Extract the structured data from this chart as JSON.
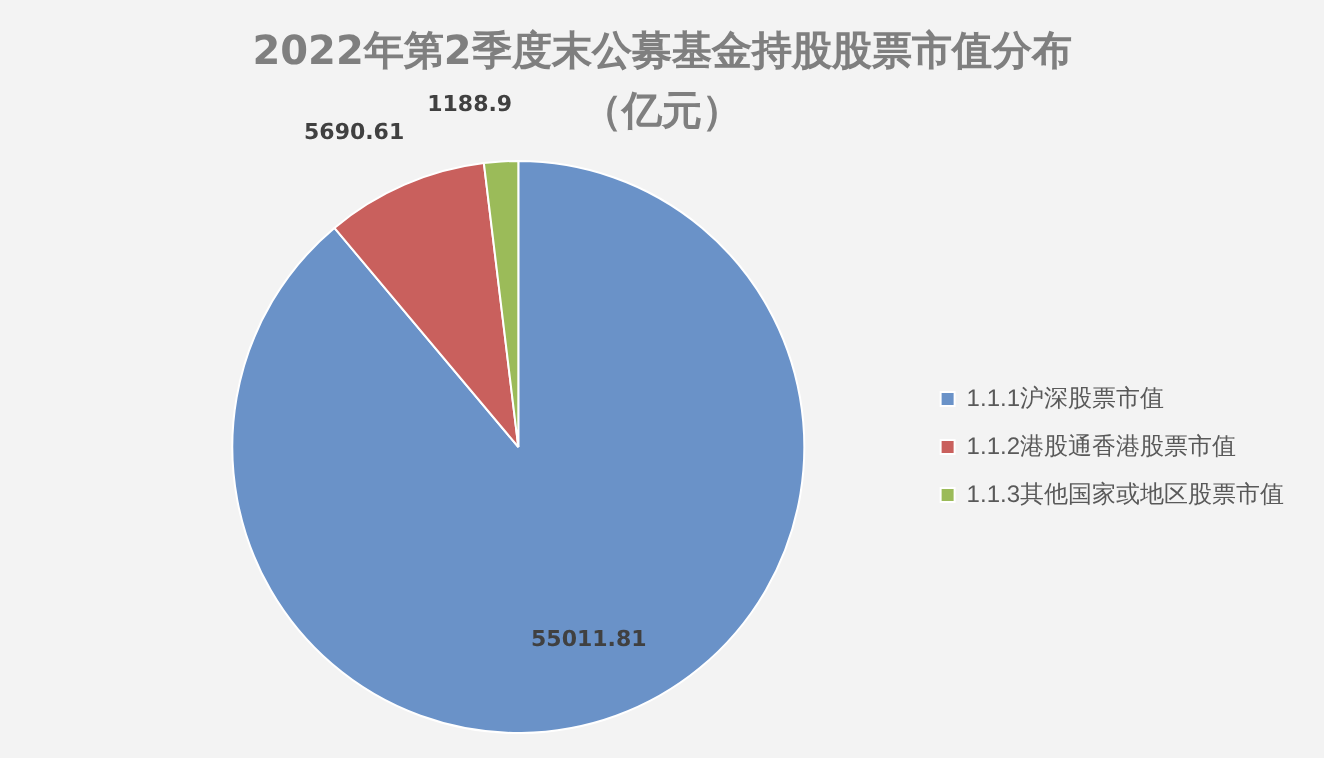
{
  "chart_data": {
    "type": "pie",
    "title": "2022年第2季度末公募基金持股股票市值分布（亿元）",
    "categories": [
      "1.1.1沪深股票市值",
      "1.1.2港股通香港股票市值",
      "1.1.3其他国家或地区股票市值"
    ],
    "values": [
      55011.81,
      5690.61,
      1188.9
    ],
    "colors": [
      "#6a92c8",
      "#c9605d",
      "#9bbb59"
    ],
    "data_labels": true,
    "legend": "right"
  }
}
